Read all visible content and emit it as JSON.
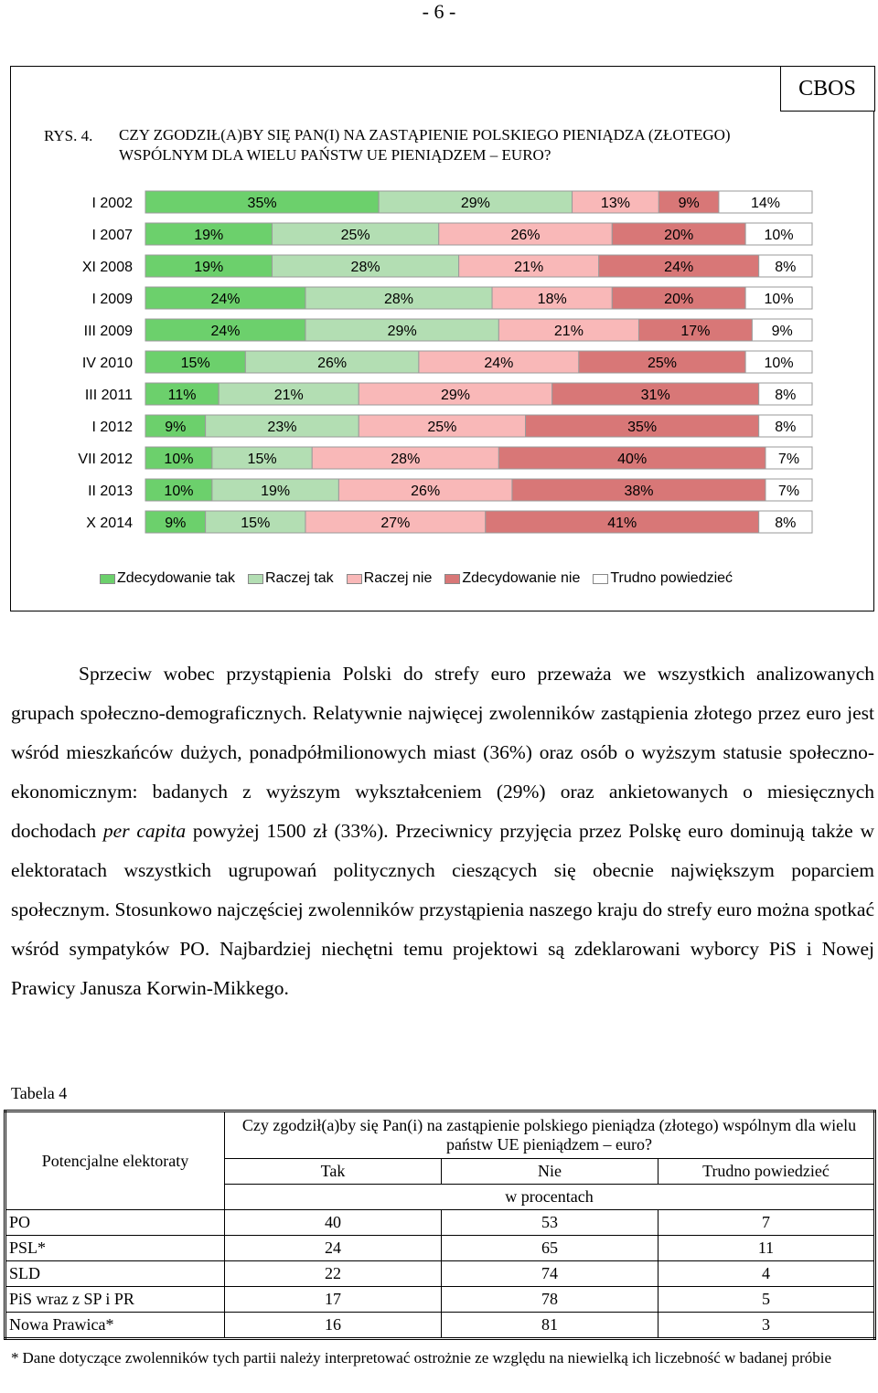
{
  "page_number": "- 6 -",
  "source_label": "CBOS",
  "figure": {
    "label": "RYS. 4.",
    "title_line1": "CZY ZGODZIŁ(A)BY SIĘ PAN(I) NA ZASTĄPIENIE POLSKIEGO PIENIĄDZA (ZŁOTEGO)",
    "title_line2": "WSPÓLNYM DLA WIELU PAŃSTW UE PIENIĄDZEM – EURO?"
  },
  "chart_data": {
    "type": "bar",
    "orientation": "horizontal",
    "stacked": true,
    "categories": [
      "I 2002",
      "I 2007",
      "XI 2008",
      "I 2009",
      "III 2009",
      "IV 2010",
      "III 2011",
      "I 2012",
      "VII 2012",
      "II 2013",
      "X 2014"
    ],
    "series": [
      {
        "name": "Zdecydowanie tak",
        "color": "#6cd06c",
        "values": [
          35,
          19,
          19,
          24,
          24,
          15,
          11,
          9,
          10,
          10,
          9
        ]
      },
      {
        "name": "Raczej tak",
        "color": "#b3deb3",
        "values": [
          29,
          25,
          28,
          28,
          29,
          26,
          21,
          23,
          15,
          19,
          15
        ]
      },
      {
        "name": "Raczej nie",
        "color": "#f9b8b8",
        "values": [
          13,
          26,
          21,
          18,
          21,
          24,
          29,
          25,
          28,
          26,
          27
        ]
      },
      {
        "name": "Zdecydowanie nie",
        "color": "#d87777",
        "values": [
          9,
          20,
          24,
          20,
          17,
          25,
          31,
          35,
          40,
          38,
          41
        ]
      },
      {
        "name": "Trudno powiedzieć",
        "color": "#ffffff",
        "values": [
          14,
          10,
          8,
          10,
          9,
          10,
          8,
          8,
          7,
          7,
          8
        ]
      }
    ],
    "value_suffix": "%",
    "legend_position": "bottom"
  },
  "paragraph": [
    "Sprzeciw wobec przystąpienia Polski do strefy euro przeważa we wszystkich analizowanych grupach społeczno-demograficznych. Relatywnie najwięcej zwolenników zastąpienia złotego przez euro jest wśród mieszkańców dużych, ponadpółmilionowych miast (36%) oraz osób o wyższym statusie społeczno-ekonomicznym: badanych z wyższym wykształceniem (29%) oraz ankietowanych o miesięcznych dochodach ",
    "per capita",
    " powyżej 1500 zł (33%). Przeciwnicy przyjęcia przez Polskę euro dominują także w elektoratach wszystkich ugrupowań politycznych cieszących się obecnie największym poparciem społecznym. Stosunkowo najczęściej zwolenników przystąpienia naszego kraju do strefy euro można spotkać wśród sympatyków PO. Najbardziej niechętni temu projektowi są zdeklarowani wyborcy PiS i Nowej Prawicy Janusza Korwin-Mikkego."
  ],
  "table": {
    "label": "Tabela 4",
    "row_header": "Potencjalne elektoraty",
    "question": "Czy zgodził(a)by się Pan(i) na zastąpienie polskiego pieniądza (złotego) wspólnym dla wielu państw UE pieniądzem – euro?",
    "columns": [
      "Tak",
      "Nie",
      "Trudno powiedzieć"
    ],
    "unit": "w procentach",
    "rows": [
      {
        "label": "PO",
        "values": [
          "40",
          "53",
          "7"
        ]
      },
      {
        "label": "PSL*",
        "values": [
          "24",
          "65",
          "11"
        ]
      },
      {
        "label": "SLD",
        "values": [
          "22",
          "74",
          "4"
        ]
      },
      {
        "label": "PiS wraz z SP i PR",
        "values": [
          "17",
          "78",
          "5"
        ]
      },
      {
        "label": "Nowa Prawica*",
        "values": [
          "16",
          "81",
          "3"
        ]
      }
    ]
  },
  "footnote": {
    "mark": "*",
    "text": "Dane dotyczące zwolenników tych partii należy interpretować ostrożnie ze względu na niewielką ich liczebność w badanej próbie"
  }
}
